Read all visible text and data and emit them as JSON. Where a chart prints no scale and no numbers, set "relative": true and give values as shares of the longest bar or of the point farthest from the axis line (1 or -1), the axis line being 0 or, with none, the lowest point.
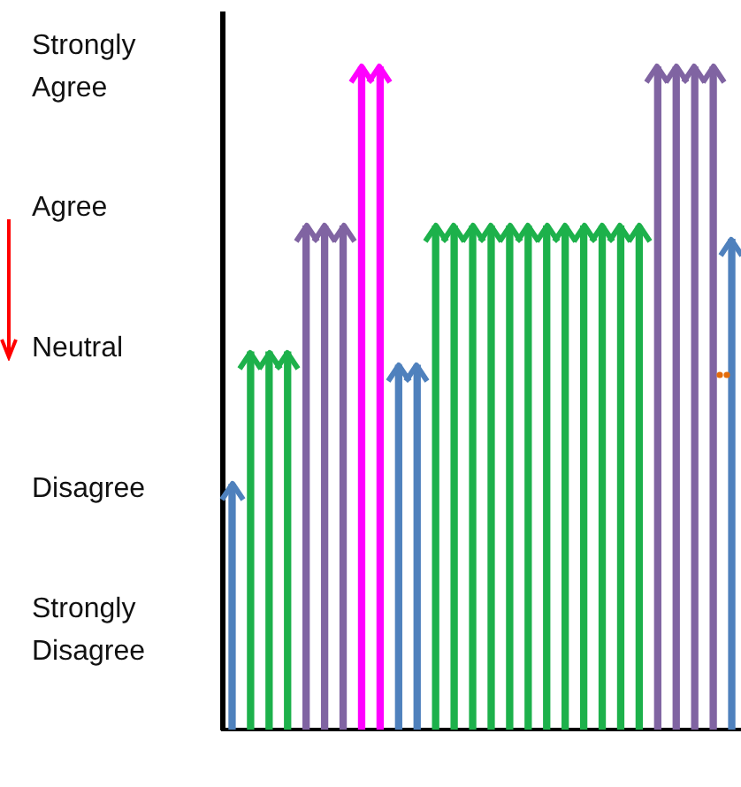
{
  "chart_data": {
    "type": "bar",
    "relative": true,
    "categories": [
      null,
      null,
      null,
      null,
      null,
      null,
      null,
      null,
      null,
      null,
      null,
      null,
      null,
      null,
      null,
      null,
      null,
      null,
      null,
      null,
      null,
      null,
      null,
      null,
      null,
      null,
      null,
      null
    ],
    "values": [
      0.37,
      0.57,
      0.57,
      0.57,
      0.76,
      0.76,
      0.76,
      1,
      1,
      0.55,
      0.55,
      0.76,
      0.76,
      0.76,
      0.76,
      0.76,
      0.76,
      0.76,
      0.76,
      0.76,
      0.76,
      0.76,
      0.76,
      1,
      1,
      1,
      1,
      0.74
    ],
    "colors": [
      "#4f81bd",
      "#1db14b",
      "#1db14b",
      "#1db14b",
      "#8064a2",
      "#8064a2",
      "#8064a2",
      "#ff00ff",
      "#ff00ff",
      "#4f81bd",
      "#4f81bd",
      "#1db14b",
      "#1db14b",
      "#1db14b",
      "#1db14b",
      "#1db14b",
      "#1db14b",
      "#1db14b",
      "#1db14b",
      "#1db14b",
      "#1db14b",
      "#1db14b",
      "#1db14b",
      "#8064a2",
      "#8064a2",
      "#8064a2",
      "#8064a2",
      "#4f81bd"
    ],
    "annotations": [
      "Strongly Agree",
      "Agree",
      "Neutral",
      "Disagree",
      "Strongly Disagree"
    ],
    "grid": false,
    "legend": false
  }
}
